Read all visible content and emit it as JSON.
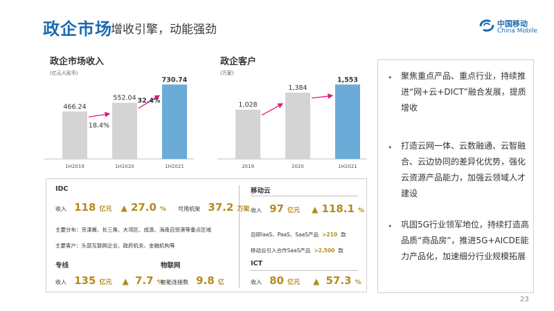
{
  "header": {
    "title": "政企市场",
    "subtitle": "增收引擎，动能强劲",
    "logo_cn": "中国移动",
    "logo_en": "China Mobile"
  },
  "chart_data": [
    {
      "type": "bar",
      "title": "政企市场收入",
      "ylabel": "(亿元人民币)",
      "categories": [
        "1H2019",
        "1H2020",
        "1H2021"
      ],
      "values": [
        466.24,
        552.04,
        730.74
      ],
      "value_labels": [
        "466.24",
        "552.04",
        "730.74"
      ],
      "growth": [
        "18.4%",
        "32.4%"
      ],
      "colors": [
        "#d4d4d4",
        "#d4d4d4",
        "#6aabd8"
      ],
      "ylim": [
        0,
        760
      ]
    },
    {
      "type": "bar",
      "title": "政企客户",
      "ylabel": "(万家)",
      "categories": [
        "2019",
        "2020",
        "1H2021"
      ],
      "values": [
        1028,
        1384,
        1553
      ],
      "value_labels": [
        "1,028",
        "1,384",
        "1,553"
      ],
      "colors": [
        "#d4d4d4",
        "#d4d4d4",
        "#6aabd8"
      ],
      "ylim": [
        0,
        1615
      ]
    }
  ],
  "idc": {
    "title": "IDC",
    "revenue_label": "收入",
    "revenue_value": "118",
    "revenue_unit": "亿元",
    "triangle": "▲",
    "growth": "27.0",
    "pct": "%",
    "racks_label": "可用机架",
    "racks_value": "37.2",
    "racks_unit": "万架",
    "distribution": "主要分布：京津冀、长三角、大湾区、成渝、海南自贸港等重点区域",
    "customers": "主要客户：头部互联网企业、政府机关、金融机构等"
  },
  "cloud": {
    "title": "移动云",
    "revenue_label": "收入",
    "revenue_value": "97",
    "revenue_unit": "亿元",
    "triangle": "▲",
    "growth": "118.1",
    "pct": "%",
    "products_text": "自研IaaS、PaaS、SaaS产品",
    "products_value": ">210",
    "products_unit": "款",
    "partner_text": "移动云引入合作SaaS产品",
    "partner_value": ">2,500",
    "partner_unit": "款"
  },
  "dedicated": {
    "title": "专线",
    "revenue_label": "收入",
    "revenue_value": "135",
    "revenue_unit": "亿元",
    "triangle": "▲",
    "growth": "7.7",
    "pct": "%"
  },
  "iot": {
    "title": "物联网",
    "label": "智能连接数",
    "value": "9.8",
    "unit": "亿"
  },
  "ict": {
    "title": "ICT",
    "revenue_label": "收入",
    "revenue_value": "80",
    "revenue_unit": "亿元",
    "triangle": "▲",
    "growth": "57.3",
    "pct": "%"
  },
  "right_panel": {
    "bullets": [
      "聚焦重点产品、重点行业，持续推进“网+云+DICT”融合发展，提质增收",
      "打造云网一体、云数融通、云智融合、云边协同的差异化优势，强化云资源产品能力，加强云领域人才建设",
      "巩固5G行业领军地位，持续打造高品质“商品房”，推进5G+AICDE能力产品化，加速细分行业规模拓展"
    ]
  },
  "page_number": "23",
  "colors": {
    "brand_blue": "#1a6bb0",
    "bar_gray": "#d4d4d4",
    "bar_blue": "#6aabd8",
    "arrow_pink": "#e0197a",
    "gold": "#b58a1b"
  }
}
